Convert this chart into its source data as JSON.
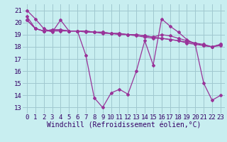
{
  "xlabel": "Windchill (Refroidissement éolien,°C)",
  "background_color": "#c8eef0",
  "grid_color": "#a0c8d0",
  "line_color": "#993399",
  "xlim": [
    -0.5,
    23.5
  ],
  "ylim": [
    12.5,
    21.5
  ],
  "yticks": [
    13,
    14,
    15,
    16,
    17,
    18,
    19,
    20,
    21
  ],
  "xticks": [
    0,
    1,
    2,
    3,
    4,
    5,
    6,
    7,
    8,
    9,
    10,
    11,
    12,
    13,
    14,
    15,
    16,
    17,
    18,
    19,
    20,
    21,
    22,
    23
  ],
  "series": [
    [
      21.0,
      20.3,
      19.5,
      19.2,
      20.2,
      19.3,
      19.3,
      17.3,
      13.8,
      13.0,
      14.2,
      14.5,
      14.1,
      16.0,
      18.5,
      16.5,
      20.3,
      19.7,
      19.2,
      18.6,
      18.2,
      15.0,
      13.6,
      14.0
    ],
    [
      20.5,
      19.5,
      19.3,
      19.3,
      19.3,
      19.3,
      19.3,
      19.2,
      19.2,
      19.1,
      19.1,
      19.0,
      19.0,
      18.9,
      18.8,
      18.7,
      18.7,
      18.6,
      18.5,
      18.4,
      18.3,
      18.2,
      18.0,
      18.2
    ],
    [
      20.2,
      19.5,
      19.3,
      19.4,
      19.4,
      19.3,
      19.3,
      19.3,
      19.2,
      19.2,
      19.1,
      19.1,
      19.0,
      19.0,
      18.9,
      18.8,
      18.7,
      18.6,
      18.5,
      18.3,
      18.2,
      18.1,
      18.0,
      18.2
    ],
    [
      20.2,
      19.5,
      19.3,
      19.4,
      19.4,
      19.3,
      19.3,
      19.3,
      19.2,
      19.2,
      19.1,
      19.1,
      19.0,
      19.0,
      18.9,
      18.8,
      19.0,
      18.9,
      18.7,
      18.5,
      18.3,
      18.1,
      18.0,
      18.1
    ]
  ],
  "font_size_xlabel": 7.0,
  "font_size_ticks": 6.5,
  "marker": "D",
  "marker_size": 2.0,
  "line_width": 0.9
}
